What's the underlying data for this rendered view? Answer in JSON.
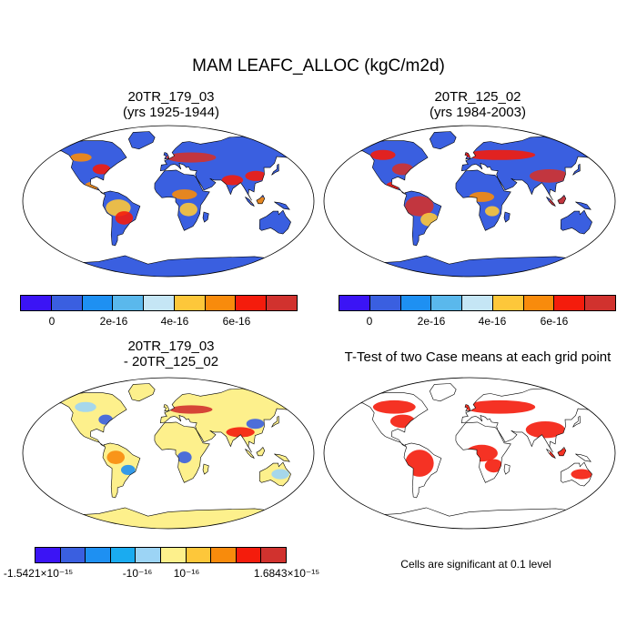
{
  "title": "MAM LEAFC_ALLOC (kgC/m2d)",
  "panels": [
    {
      "title": "20TR_179_03\n(yrs 1925-1944)"
    },
    {
      "title": "20TR_125_02\n(yrs 1984-2003)"
    },
    {
      "title": "20TR_179_03\n- 20TR_125_02"
    },
    {
      "title": "T-Test of two Case means at each grid point"
    }
  ],
  "colorbar_abs": {
    "colors": [
      "#3b14f5",
      "#3a5fe0",
      "#1e90f2",
      "#5ab8ec",
      "#c5e6f5",
      "#fdc73a",
      "#f88b0c",
      "#f41c0c",
      "#d1322e"
    ],
    "labels": [
      "0",
      "2e-16",
      "4e-16",
      "6e-16"
    ]
  },
  "colorbar_diff": {
    "colors": [
      "#3b14f5",
      "#3a5fe0",
      "#1e90f2",
      "#1aabf0",
      "#9cd4f5",
      "#fdf08c",
      "#fdc73a",
      "#f88b0c",
      "#f41c0c",
      "#d1322e"
    ],
    "labels": [
      "-1.5421×10⁻¹⁵",
      "-10⁻¹⁶",
      "10⁻¹⁶",
      "1.6843×10⁻¹⁵"
    ]
  },
  "significance_note": "Cells are significant at 0.1 level"
}
